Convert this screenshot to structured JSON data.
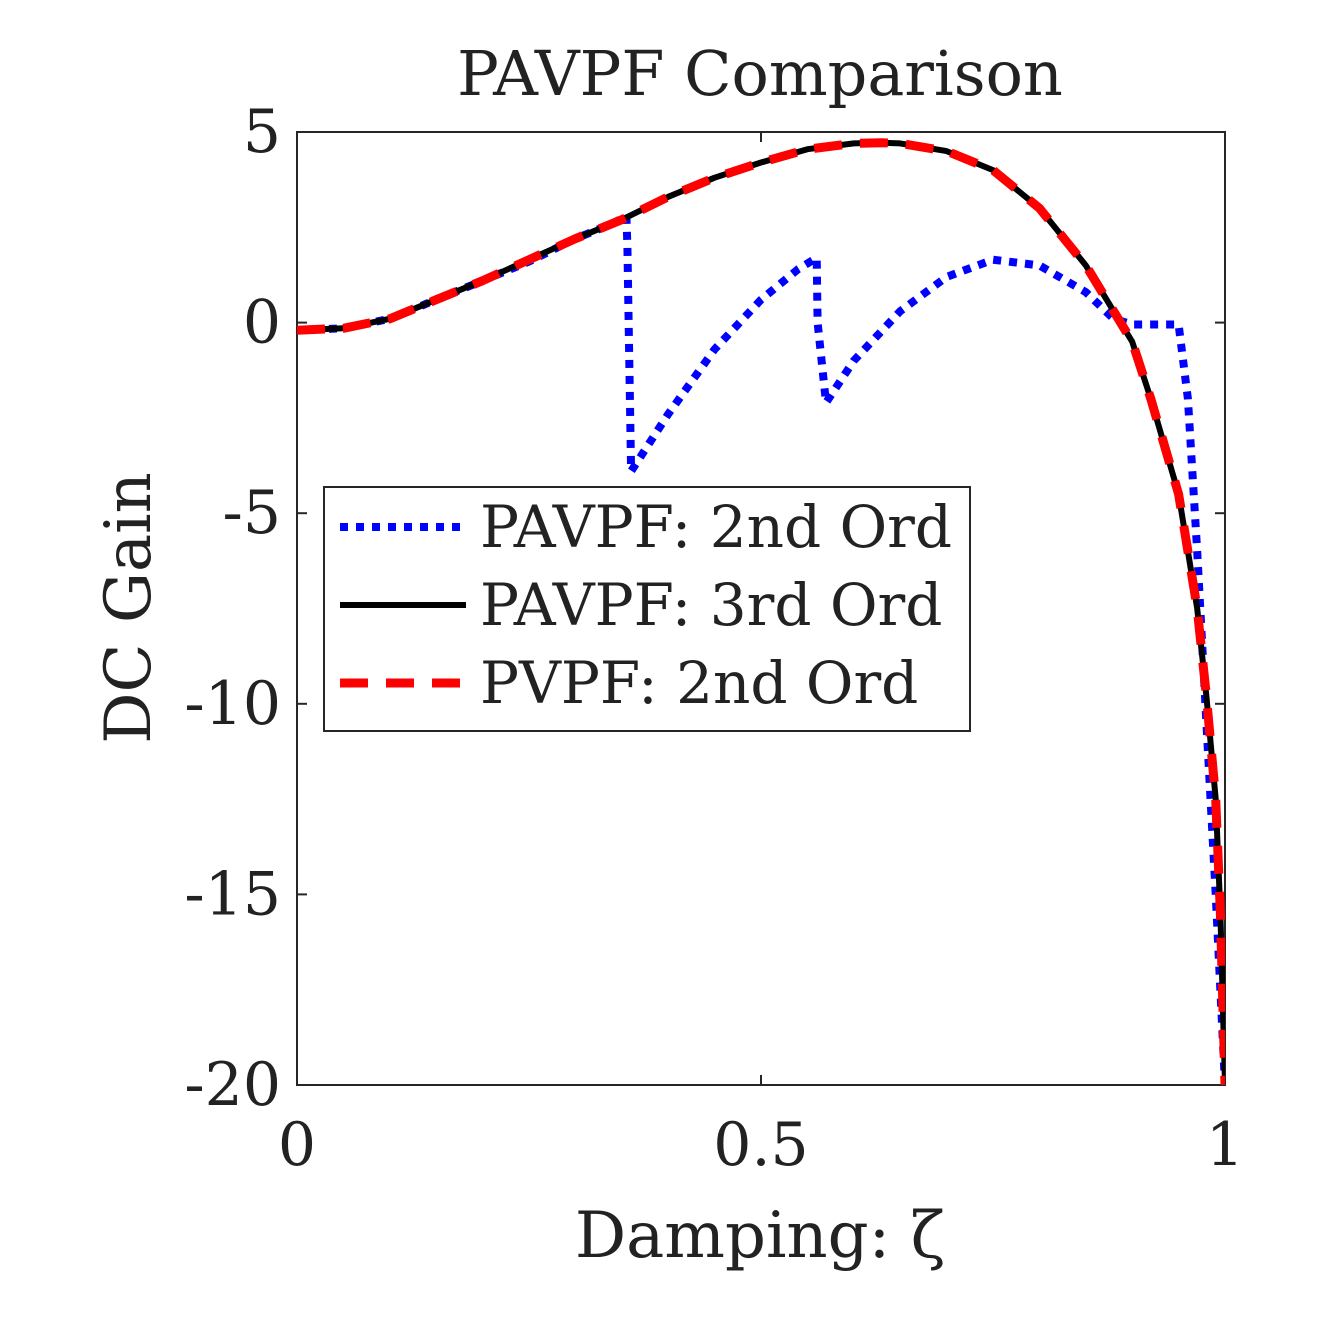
{
  "chart_data": {
    "type": "line",
    "title": "PAVPF Comparison",
    "xlabel": "Damping: ζ",
    "ylabel": "DC Gain",
    "xlim": [
      0,
      1
    ],
    "ylim": [
      -20,
      5
    ],
    "xticks": [
      0,
      0.5,
      1
    ],
    "xtick_labels": [
      "0",
      "0.5",
      "1"
    ],
    "yticks": [
      5,
      0,
      -5,
      -10,
      -15,
      -20
    ],
    "ytick_labels": [
      "5",
      "0",
      "-5",
      "-10",
      "-15",
      "-20"
    ],
    "grid": false,
    "legend_position": "middle-left",
    "series": [
      {
        "name": "PAVPF: 2nd Ord",
        "color": "#0000ff",
        "style": "dotted",
        "x": [
          0,
          0.05,
          0.1,
          0.15,
          0.2,
          0.25,
          0.3,
          0.34,
          0.355,
          0.356,
          0.36,
          0.4,
          0.45,
          0.5,
          0.54,
          0.56,
          0.561,
          0.57,
          0.6,
          0.65,
          0.7,
          0.75,
          0.8,
          0.85,
          0.88,
          0.9,
          0.93,
          0.95,
          0.96,
          0.97,
          0.98,
          0.99,
          1.0
        ],
        "y": [
          -0.2,
          -0.15,
          0.1,
          0.6,
          1.1,
          1.6,
          2.2,
          2.6,
          2.8,
          2.0,
          -3.9,
          -2.4,
          -0.7,
          0.6,
          1.4,
          1.7,
          0.0,
          -2.1,
          -1.0,
          0.3,
          1.2,
          1.65,
          1.5,
          0.8,
          0.1,
          -0.05,
          -0.05,
          -0.05,
          -2.0,
          -6.0,
          -10.5,
          -15.0,
          -20.0
        ]
      },
      {
        "name": "PAVPF: 3rd Ord",
        "color": "#000000",
        "style": "solid",
        "x": [
          0,
          0.05,
          0.1,
          0.15,
          0.2,
          0.25,
          0.3,
          0.35,
          0.4,
          0.45,
          0.5,
          0.55,
          0.6,
          0.63,
          0.65,
          0.7,
          0.75,
          0.8,
          0.85,
          0.9,
          0.92,
          0.95,
          0.97,
          0.98,
          0.99,
          0.995,
          1.0
        ],
        "y": [
          -0.2,
          -0.15,
          0.1,
          0.6,
          1.1,
          1.65,
          2.2,
          2.7,
          3.3,
          3.8,
          4.2,
          4.55,
          4.7,
          4.72,
          4.7,
          4.5,
          4.0,
          3.0,
          1.5,
          -0.5,
          -2.0,
          -4.5,
          -7.5,
          -9.8,
          -12.5,
          -15.5,
          -20.0
        ]
      },
      {
        "name": "PVPF: 2nd Ord",
        "color": "#ff0000",
        "style": "dashed",
        "x": [
          0,
          0.05,
          0.1,
          0.15,
          0.2,
          0.25,
          0.3,
          0.35,
          0.4,
          0.45,
          0.5,
          0.55,
          0.6,
          0.63,
          0.65,
          0.7,
          0.75,
          0.8,
          0.85,
          0.9,
          0.92,
          0.95,
          0.97,
          0.98,
          0.99,
          0.995,
          1.0
        ],
        "y": [
          -0.2,
          -0.15,
          0.1,
          0.6,
          1.1,
          1.65,
          2.2,
          2.7,
          3.3,
          3.8,
          4.2,
          4.55,
          4.7,
          4.72,
          4.7,
          4.5,
          4.0,
          3.0,
          1.5,
          -0.5,
          -2.0,
          -4.5,
          -7.5,
          -9.8,
          -12.5,
          -15.5,
          -20.0
        ]
      }
    ]
  }
}
